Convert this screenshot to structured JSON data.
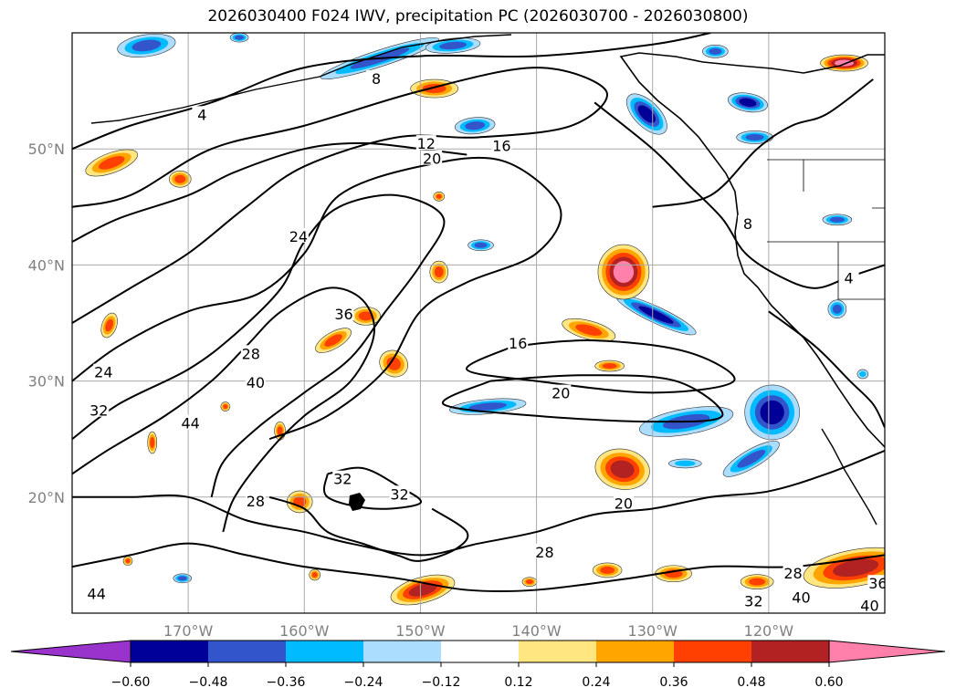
{
  "title": "2026030400 F024 IWV, precipitation PC (2026030700 - 2026030800)",
  "lat_labels": [
    {
      "label": "50°N",
      "lat": 50
    },
    {
      "label": "40°N",
      "lat": 40
    },
    {
      "label": "30°N",
      "lat": 30
    },
    {
      "label": "20°N",
      "lat": 20
    }
  ],
  "lon_labels": [
    {
      "label": "170°W",
      "lon": -170
    },
    {
      "label": "160°W",
      "lon": -160
    },
    {
      "label": "150°W",
      "lon": -150
    },
    {
      "label": "140°W",
      "lon": -140
    },
    {
      "label": "130°W",
      "lon": -130
    },
    {
      "label": "120°W",
      "lon": -120
    }
  ],
  "map_extent": {
    "lon_min": -180,
    "lon_max": -110,
    "lat_min": 10,
    "lat_max": 60
  },
  "colorbar": {
    "ticks": [
      "−0.60",
      "−0.48",
      "−0.36",
      "−0.24",
      "−0.12",
      "0.12",
      "0.24",
      "0.36",
      "0.48",
      "0.60"
    ],
    "colors": [
      "#9933cc",
      "#000099",
      "#3355cc",
      "#00bbff",
      "#aaddff",
      "#ffffff",
      "#ffe680",
      "#ffa500",
      "#ff4000",
      "#b22222",
      "#ff80aa"
    ]
  },
  "contour_labels": [
    {
      "text": "4",
      "lon": -168.8,
      "lat": 52.9
    },
    {
      "text": "8",
      "lon": -153.8,
      "lat": 56
    },
    {
      "text": "12",
      "lon": -149.5,
      "lat": 50.4
    },
    {
      "text": "16",
      "lon": -143,
      "lat": 50.2
    },
    {
      "text": "20",
      "lon": -149,
      "lat": 49.1
    },
    {
      "text": "24",
      "lon": -160.5,
      "lat": 42.4
    },
    {
      "text": "36",
      "lon": -156.6,
      "lat": 35.7
    },
    {
      "text": "28",
      "lon": -164.6,
      "lat": 32.3
    },
    {
      "text": "40",
      "lon": -164.2,
      "lat": 29.8
    },
    {
      "text": "24",
      "lon": -177.3,
      "lat": 30.7
    },
    {
      "text": "32",
      "lon": -177.7,
      "lat": 27.4
    },
    {
      "text": "44",
      "lon": -169.8,
      "lat": 26.3
    },
    {
      "text": "16",
      "lon": -141.6,
      "lat": 33.2
    },
    {
      "text": "20",
      "lon": -137.9,
      "lat": 28.9
    },
    {
      "text": "32",
      "lon": -156.7,
      "lat": 21.5
    },
    {
      "text": "32",
      "lon": -151.8,
      "lat": 20.2
    },
    {
      "text": "28",
      "lon": -164.2,
      "lat": 19.6
    },
    {
      "text": "20",
      "lon": -132.5,
      "lat": 19.4
    },
    {
      "text": "28",
      "lon": -139.3,
      "lat": 15.2
    },
    {
      "text": "44",
      "lon": -177.9,
      "lat": 11.6
    },
    {
      "text": "28",
      "lon": -117.9,
      "lat": 13.4
    },
    {
      "text": "36",
      "lon": -110.6,
      "lat": 12.5
    },
    {
      "text": "40",
      "lon": -117.2,
      "lat": 11.3
    },
    {
      "text": "32",
      "lon": -121.3,
      "lat": 11.0
    },
    {
      "text": "40",
      "lon": -111.3,
      "lat": 10.6
    },
    {
      "text": "8",
      "lon": -121.8,
      "lat": 43.5
    },
    {
      "text": "4",
      "lon": -113.1,
      "lat": 38.8
    }
  ],
  "precip_patches": [
    {
      "lon": -173.6,
      "lat": 58.9,
      "rx": 32,
      "ry": 12,
      "sign": "neg",
      "mag": 2,
      "rot": -8
    },
    {
      "lon": -165.6,
      "lat": 59.6,
      "rx": 10,
      "ry": 5,
      "sign": "neg",
      "mag": 2,
      "rot": 0
    },
    {
      "lon": -153.5,
      "lat": 57.8,
      "rx": 68,
      "ry": 9,
      "sign": "neg",
      "mag": 2,
      "rot": -18
    },
    {
      "lon": -147.2,
      "lat": 58.9,
      "rx": 30,
      "ry": 8,
      "sign": "neg",
      "mag": 2,
      "rot": -5
    },
    {
      "lon": -130.5,
      "lat": 53,
      "rx": 28,
      "ry": 14,
      "sign": "neg",
      "mag": 3,
      "rot": 45
    },
    {
      "lon": -145.3,
      "lat": 52,
      "rx": 22,
      "ry": 9,
      "sign": "neg",
      "mag": 2,
      "rot": -5
    },
    {
      "lon": -121.8,
      "lat": 54,
      "rx": 22,
      "ry": 10,
      "sign": "neg",
      "mag": 3,
      "rot": 10
    },
    {
      "lon": -124.6,
      "lat": 58.4,
      "rx": 14,
      "ry": 7,
      "sign": "neg",
      "mag": 2,
      "rot": 0
    },
    {
      "lon": -121.2,
      "lat": 51,
      "rx": 20,
      "ry": 7,
      "sign": "neg",
      "mag": 2,
      "rot": 0
    },
    {
      "lon": -129.7,
      "lat": 35.7,
      "rx": 48,
      "ry": 9,
      "sign": "neg",
      "mag": 3,
      "rot": 25
    },
    {
      "lon": -144.2,
      "lat": 27.8,
      "rx": 42,
      "ry": 8,
      "sign": "neg",
      "mag": 2,
      "rot": -5
    },
    {
      "lon": -127.1,
      "lat": 26.5,
      "rx": 52,
      "ry": 14,
      "sign": "neg",
      "mag": 2,
      "rot": -10
    },
    {
      "lon": -119.7,
      "lat": 27.3,
      "rx": 30,
      "ry": 30,
      "sign": "neg",
      "mag": 3,
      "rot": 40
    },
    {
      "lon": -121.5,
      "lat": 23.3,
      "rx": 35,
      "ry": 10,
      "sign": "neg",
      "mag": 2,
      "rot": -30
    },
    {
      "lon": -127.2,
      "lat": 22.9,
      "rx": 18,
      "ry": 5,
      "sign": "neg",
      "mag": 1,
      "rot": 0
    },
    {
      "lon": -144.8,
      "lat": 41.7,
      "rx": 14,
      "ry": 6,
      "sign": "neg",
      "mag": 2,
      "rot": 0
    },
    {
      "lon": -114.1,
      "lat": 43.9,
      "rx": 16,
      "ry": 6,
      "sign": "neg",
      "mag": 2,
      "rot": 0
    },
    {
      "lon": -114.1,
      "lat": 36.2,
      "rx": 10,
      "ry": 10,
      "sign": "neg",
      "mag": 2,
      "rot": 0
    },
    {
      "lon": -111.9,
      "lat": 30.6,
      "rx": 6,
      "ry": 5,
      "sign": "neg",
      "mag": 1,
      "rot": 0
    },
    {
      "lon": -170.5,
      "lat": 13,
      "rx": 10,
      "ry": 5,
      "sign": "neg",
      "mag": 2,
      "rot": 0
    },
    {
      "lon": -132.5,
      "lat": 39.4,
      "rx": 28,
      "ry": 30,
      "sign": "pos",
      "mag": 4,
      "rot": 0
    },
    {
      "lon": -113.5,
      "lat": 57.4,
      "rx": 26,
      "ry": 9,
      "sign": "pos",
      "mag": 4,
      "rot": 0
    },
    {
      "lon": -176.6,
      "lat": 48.8,
      "rx": 30,
      "ry": 11,
      "sign": "pos",
      "mag": 2,
      "rot": -20
    },
    {
      "lon": -170.7,
      "lat": 47.4,
      "rx": 12,
      "ry": 9,
      "sign": "pos",
      "mag": 2,
      "rot": 0
    },
    {
      "lon": -154.7,
      "lat": 35.6,
      "rx": 16,
      "ry": 10,
      "sign": "pos",
      "mag": 2,
      "rot": 0
    },
    {
      "lon": -157.5,
      "lat": 33.5,
      "rx": 22,
      "ry": 9,
      "sign": "pos",
      "mag": 2,
      "rot": -30
    },
    {
      "lon": -152.3,
      "lat": 31.5,
      "rx": 16,
      "ry": 14,
      "sign": "pos",
      "mag": 2,
      "rot": 30
    },
    {
      "lon": -148.4,
      "lat": 39.4,
      "rx": 10,
      "ry": 12,
      "sign": "pos",
      "mag": 2,
      "rot": 0
    },
    {
      "lon": -148.8,
      "lat": 55.2,
      "rx": 26,
      "ry": 10,
      "sign": "pos",
      "mag": 2,
      "rot": 0
    },
    {
      "lon": -135.5,
      "lat": 34.4,
      "rx": 30,
      "ry": 10,
      "sign": "pos",
      "mag": 2,
      "rot": 15
    },
    {
      "lon": -133.7,
      "lat": 31.3,
      "rx": 16,
      "ry": 6,
      "sign": "pos",
      "mag": 2,
      "rot": 0
    },
    {
      "lon": -132.6,
      "lat": 22.4,
      "rx": 30,
      "ry": 22,
      "sign": "pos",
      "mag": 3,
      "rot": 10
    },
    {
      "lon": -176.8,
      "lat": 34.8,
      "rx": 8,
      "ry": 14,
      "sign": "pos",
      "mag": 2,
      "rot": 20
    },
    {
      "lon": -160.4,
      "lat": 19.6,
      "rx": 14,
      "ry": 12,
      "sign": "pos",
      "mag": 2,
      "rot": 0
    },
    {
      "lon": -149.8,
      "lat": 12,
      "rx": 36,
      "ry": 14,
      "sign": "pos",
      "mag": 3,
      "rot": -15
    },
    {
      "lon": -112.5,
      "lat": 13.9,
      "rx": 58,
      "ry": 20,
      "sign": "pos",
      "mag": 3,
      "rot": -10
    },
    {
      "lon": -128.2,
      "lat": 13.4,
      "rx": 20,
      "ry": 9,
      "sign": "pos",
      "mag": 2,
      "rot": 0
    },
    {
      "lon": -133.9,
      "lat": 13.7,
      "rx": 16,
      "ry": 8,
      "sign": "pos",
      "mag": 2,
      "rot": 0
    },
    {
      "lon": -121,
      "lat": 12.7,
      "rx": 18,
      "ry": 8,
      "sign": "pos",
      "mag": 2,
      "rot": 0
    },
    {
      "lon": -140.6,
      "lat": 12.7,
      "rx": 8,
      "ry": 5,
      "sign": "pos",
      "mag": 2,
      "rot": 0
    },
    {
      "lon": -159.1,
      "lat": 13.3,
      "rx": 6,
      "ry": 6,
      "sign": "pos",
      "mag": 2,
      "rot": 0
    },
    {
      "lon": -162.1,
      "lat": 25.7,
      "rx": 6,
      "ry": 10,
      "sign": "pos",
      "mag": 2,
      "rot": 0
    },
    {
      "lon": -173.1,
      "lat": 24.7,
      "rx": 5,
      "ry": 12,
      "sign": "pos",
      "mag": 2,
      "rot": 0
    },
    {
      "lon": -166.8,
      "lat": 27.8,
      "rx": 5,
      "ry": 5,
      "sign": "pos",
      "mag": 2,
      "rot": 0
    },
    {
      "lon": -175.2,
      "lat": 14.5,
      "rx": 5,
      "ry": 5,
      "sign": "pos",
      "mag": 2,
      "rot": 0
    },
    {
      "lon": -148.4,
      "lat": 45.9,
      "rx": 6,
      "ry": 5,
      "sign": "pos",
      "mag": 2,
      "rot": 0
    }
  ],
  "iwv_contours": [
    [
      [
        -180,
        30
      ],
      [
        -176,
        33
      ],
      [
        -170,
        36
      ],
      [
        -164,
        37.5
      ],
      [
        -160,
        41
      ],
      [
        -157,
        46
      ],
      [
        -150,
        48.5
      ],
      [
        -143,
        49
      ],
      [
        -138,
        45
      ],
      [
        -140,
        41
      ],
      [
        -146,
        38.5
      ],
      [
        -150,
        36
      ],
      [
        -153,
        31
      ],
      [
        -158,
        27
      ],
      [
        -163,
        25
      ]
    ],
    [
      [
        -180,
        35
      ],
      [
        -175,
        38
      ],
      [
        -170,
        41
      ],
      [
        -165,
        45
      ],
      [
        -160,
        48.5
      ],
      [
        -152,
        51
      ],
      [
        -145,
        51
      ],
      [
        -137,
        52
      ],
      [
        -134,
        55
      ],
      [
        -140,
        57
      ],
      [
        -150,
        55
      ],
      [
        -160,
        52
      ],
      [
        -168,
        50
      ],
      [
        -175,
        46
      ],
      [
        -180,
        45
      ]
    ],
    [
      [
        -180,
        50
      ],
      [
        -175,
        52
      ],
      [
        -168,
        54
      ],
      [
        -160,
        57
      ],
      [
        -150,
        58
      ],
      [
        -140,
        58
      ],
      [
        -130,
        59
      ],
      [
        -125,
        60
      ]
    ],
    [
      [
        -180,
        25
      ],
      [
        -176,
        28
      ],
      [
        -170,
        31
      ],
      [
        -166,
        34
      ],
      [
        -162,
        38
      ],
      [
        -160,
        42
      ],
      [
        -157,
        45
      ],
      [
        -152,
        46
      ],
      [
        -148,
        44
      ],
      [
        -150,
        40
      ],
      [
        -153,
        36
      ],
      [
        -156,
        32
      ],
      [
        -160,
        29
      ],
      [
        -164,
        26
      ],
      [
        -167,
        23
      ],
      [
        -168,
        20
      ]
    ],
    [
      [
        -180,
        22
      ],
      [
        -177,
        24
      ],
      [
        -172,
        27
      ],
      [
        -168,
        30
      ],
      [
        -165,
        33
      ],
      [
        -162,
        36
      ],
      [
        -158,
        38
      ],
      [
        -155,
        37
      ],
      [
        -154,
        34
      ],
      [
        -156,
        30
      ],
      [
        -160,
        27
      ],
      [
        -163,
        24
      ],
      [
        -166,
        20
      ],
      [
        -167,
        17
      ]
    ],
    [
      [
        -180,
        20
      ],
      [
        -175,
        20
      ],
      [
        -170,
        20
      ],
      [
        -165,
        18
      ],
      [
        -160,
        17
      ],
      [
        -156,
        16
      ],
      [
        -150,
        15
      ],
      [
        -145,
        16
      ],
      [
        -140,
        17
      ],
      [
        -135,
        18.5
      ],
      [
        -130,
        19
      ],
      [
        -125,
        20
      ],
      [
        -120,
        20.5
      ],
      [
        -115,
        22
      ],
      [
        -110,
        24
      ]
    ],
    [
      [
        -180,
        14
      ],
      [
        -175,
        15
      ],
      [
        -170,
        16
      ],
      [
        -165,
        15
      ],
      [
        -160,
        14
      ],
      [
        -152,
        13
      ],
      [
        -146,
        12
      ],
      [
        -140,
        12
      ],
      [
        -132,
        13
      ],
      [
        -125,
        14
      ],
      [
        -118,
        14
      ],
      [
        -110,
        15
      ]
    ],
    [
      [
        -142,
        33
      ],
      [
        -135,
        33.5
      ],
      [
        -127,
        32.5
      ],
      [
        -123,
        30
      ],
      [
        -130,
        29
      ],
      [
        -140,
        30
      ],
      [
        -146,
        31
      ],
      [
        -142,
        33
      ]
    ],
    [
      [
        -144,
        30
      ],
      [
        -136,
        30.5
      ],
      [
        -128,
        30
      ],
      [
        -124,
        27
      ],
      [
        -130,
        26.5
      ],
      [
        -140,
        27
      ],
      [
        -148,
        28
      ],
      [
        -144,
        30
      ]
    ],
    [
      [
        -158,
        22
      ],
      [
        -155,
        22.5
      ],
      [
        -152,
        21
      ],
      [
        -150,
        19.5
      ],
      [
        -154,
        19
      ],
      [
        -158,
        20
      ],
      [
        -158,
        22
      ]
    ],
    [
      [
        -163,
        20
      ],
      [
        -160,
        19
      ],
      [
        -158,
        17
      ],
      [
        -155,
        16
      ],
      [
        -152,
        15
      ],
      [
        -150,
        14.5
      ],
      [
        -147,
        15.5
      ],
      [
        -146,
        17
      ],
      [
        -149,
        19
      ]
    ],
    [
      [
        -135,
        54
      ],
      [
        -130,
        50
      ],
      [
        -127,
        47
      ],
      [
        -124,
        44
      ],
      [
        -122,
        41
      ],
      [
        -119,
        39
      ],
      [
        -116,
        38
      ],
      [
        -113,
        39
      ],
      [
        -110,
        40
      ]
    ],
    [
      [
        -120,
        36
      ],
      [
        -116,
        33
      ],
      [
        -113,
        30
      ],
      [
        -111,
        28
      ],
      [
        -110,
        26
      ]
    ],
    [
      [
        -130,
        45
      ],
      [
        -125,
        46
      ],
      [
        -121,
        50
      ],
      [
        -118,
        52
      ],
      [
        -115,
        53
      ],
      [
        -111,
        56
      ]
    ],
    [
      [
        -180,
        42
      ],
      [
        -176,
        44
      ],
      [
        -170,
        46
      ],
      [
        -166,
        48
      ],
      [
        -160,
        50
      ],
      [
        -155,
        50.5
      ],
      [
        -150,
        50
      ],
      [
        -146,
        49.5
      ]
    ]
  ]
}
